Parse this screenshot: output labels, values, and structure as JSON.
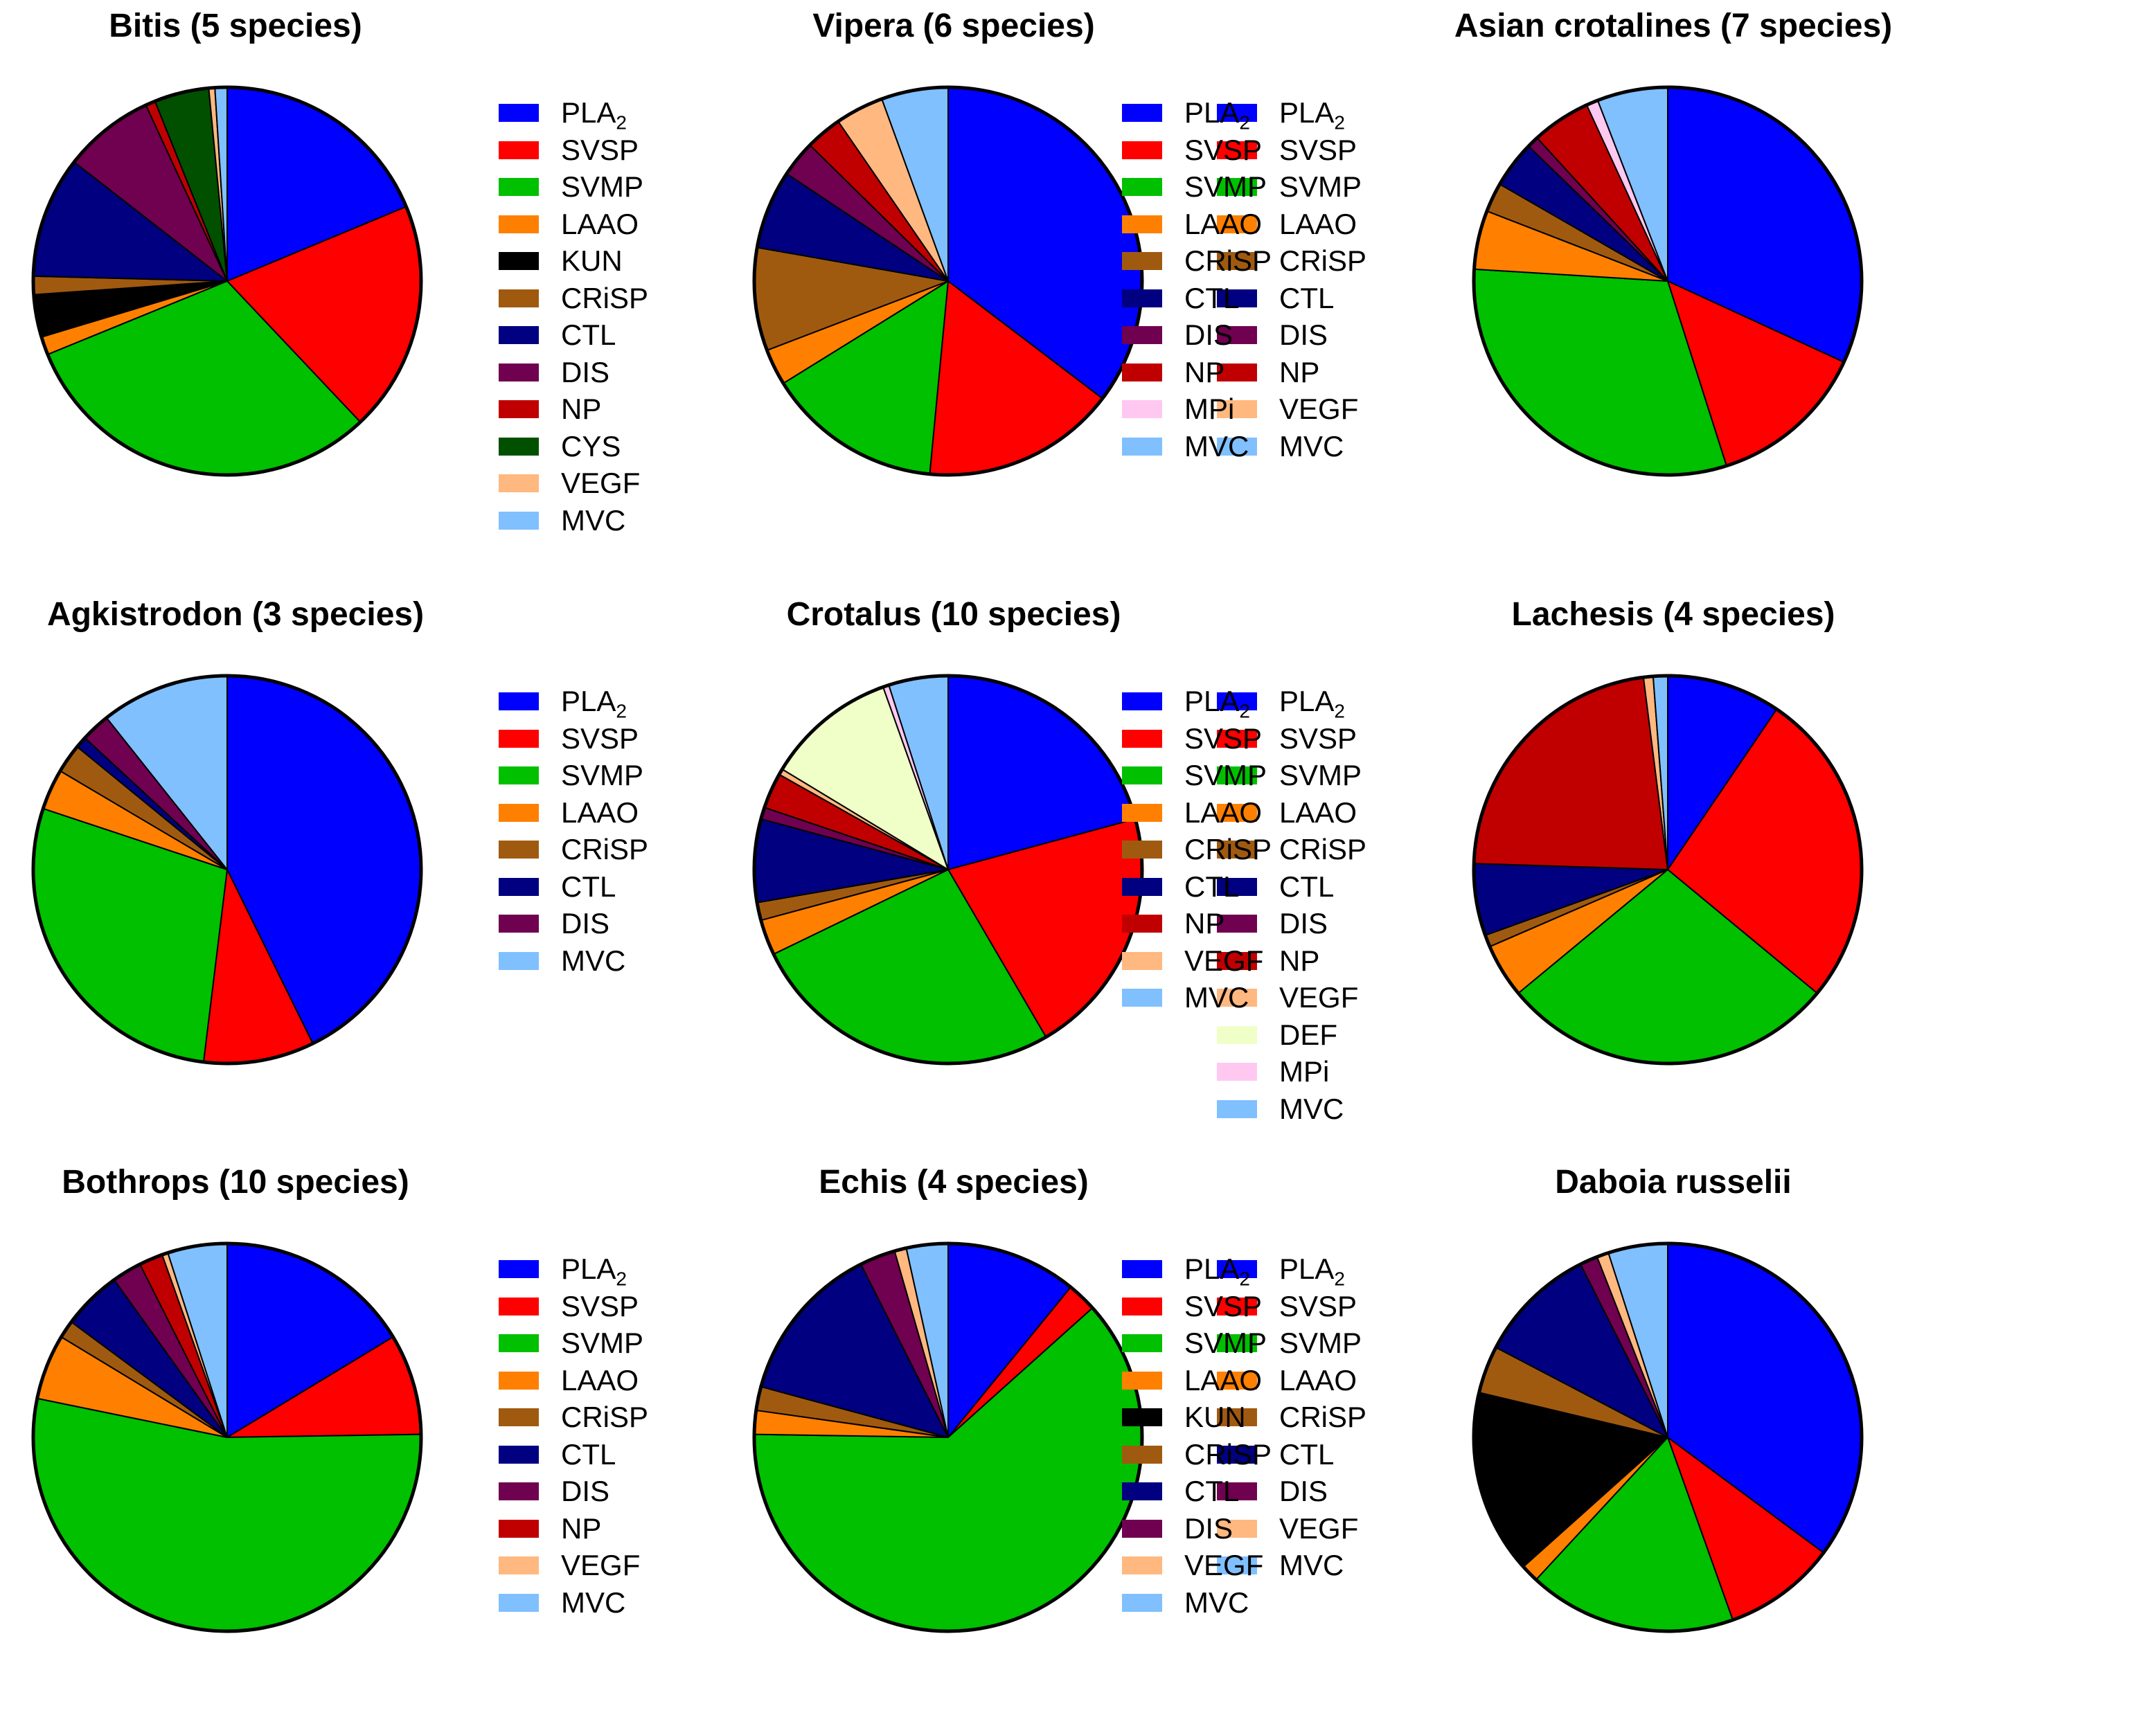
{
  "colors": {
    "PLA2": "#0000ff",
    "SVSP": "#ff0000",
    "SVMP": "#00c000",
    "LAAO": "#ff8000",
    "KUN": "#000000",
    "CRiSP": "#a05a10",
    "CTL": "#000080",
    "DIS": "#700050",
    "NP": "#c00000",
    "CYS": "#005000",
    "VEGF": "#ffb880",
    "MVC": "#80c0ff",
    "MPi": "#ffc8f0",
    "DEF": "#f0ffc8"
  },
  "chart_data": [
    {
      "type": "pie",
      "title": "Bitis (5 species)",
      "legend": [
        "PLA2",
        "SVSP",
        "SVMP",
        "LAAO",
        "KUN",
        "CRiSP",
        "CTL",
        "DIS",
        "NP",
        "CYS",
        "VEGF",
        "MVC"
      ],
      "slices": [
        {
          "label": "PLA2",
          "value": 18.5
        },
        {
          "label": "SVSP",
          "value": 19.0
        },
        {
          "label": "SVMP",
          "value": 30.5
        },
        {
          "label": "LAAO",
          "value": 1.5
        },
        {
          "label": "KUN",
          "value": 3.5
        },
        {
          "label": "CRiSP",
          "value": 1.5
        },
        {
          "label": "CTL",
          "value": 10.0
        },
        {
          "label": "DIS",
          "value": 7.5
        },
        {
          "label": "NP",
          "value": 0.8
        },
        {
          "label": "CYS",
          "value": 4.5
        },
        {
          "label": "VEGF",
          "value": 0.5
        },
        {
          "label": "MVC",
          "value": 1.0
        }
      ]
    },
    {
      "type": "pie",
      "title": "Vipera (6 species)",
      "legend": [
        "PLA2",
        "SVSP",
        "SVMP",
        "LAAO",
        "CRiSP",
        "CTL",
        "DIS",
        "NP",
        "VEGF",
        "MVC"
      ],
      "slices": [
        {
          "label": "PLA2",
          "value": 35.0
        },
        {
          "label": "SVSP",
          "value": 16.0
        },
        {
          "label": "SVMP",
          "value": 14.5
        },
        {
          "label": "LAAO",
          "value": 3.0
        },
        {
          "label": "CRiSP",
          "value": 8.5
        },
        {
          "label": "CTL",
          "value": 6.5
        },
        {
          "label": "DIS",
          "value": 3.0
        },
        {
          "label": "NP",
          "value": 3.0
        },
        {
          "label": "VEGF",
          "value": 4.0
        },
        {
          "label": "MVC",
          "value": 5.5
        }
      ]
    },
    {
      "type": "pie",
      "title": "Asian crotalines (7 species)",
      "legend": [
        "PLA2",
        "SVSP",
        "SVMP",
        "LAAO",
        "CRiSP",
        "CTL",
        "DIS",
        "NP",
        "MPi",
        "MVC"
      ],
      "slices": [
        {
          "label": "PLA2",
          "value": 32.5
        },
        {
          "label": "SVSP",
          "value": 13.5
        },
        {
          "label": "SVMP",
          "value": 31.5
        },
        {
          "label": "LAAO",
          "value": 5.0
        },
        {
          "label": "CRiSP",
          "value": 2.5
        },
        {
          "label": "CTL",
          "value": 4.0
        },
        {
          "label": "DIS",
          "value": 1.0
        },
        {
          "label": "NP",
          "value": 5.0
        },
        {
          "label": "MPi",
          "value": 1.0
        },
        {
          "label": "MVC",
          "value": 6.0
        }
      ]
    },
    {
      "type": "pie",
      "title": "Agkistrodon (3 species)",
      "legend": [
        "PLA2",
        "SVSP",
        "SVMP",
        "LAAO",
        "CRiSP",
        "CTL",
        "DIS",
        "MVC"
      ],
      "slices": [
        {
          "label": "PLA2",
          "value": 44.0
        },
        {
          "label": "SVSP",
          "value": 9.5
        },
        {
          "label": "SVMP",
          "value": 29.0
        },
        {
          "label": "LAAO",
          "value": 3.5
        },
        {
          "label": "CRiSP",
          "value": 2.5
        },
        {
          "label": "CTL",
          "value": 1.0
        },
        {
          "label": "DIS",
          "value": 2.5
        },
        {
          "label": "MVC",
          "value": 11.0
        }
      ]
    },
    {
      "type": "pie",
      "title": "Crotalus (10 species)",
      "legend": [
        "PLA2",
        "SVSP",
        "SVMP",
        "LAAO",
        "CRiSP",
        "CTL",
        "DIS",
        "NP",
        "VEGF",
        "DEF",
        "MPi",
        "MVC"
      ],
      "slices": [
        {
          "label": "PLA2",
          "value": 21.0
        },
        {
          "label": "SVSP",
          "value": 21.0
        },
        {
          "label": "SVMP",
          "value": 26.5
        },
        {
          "label": "LAAO",
          "value": 3.0
        },
        {
          "label": "CRiSP",
          "value": 1.5
        },
        {
          "label": "CTL",
          "value": 7.0
        },
        {
          "label": "DIS",
          "value": 1.0
        },
        {
          "label": "NP",
          "value": 3.0
        },
        {
          "label": "VEGF",
          "value": 0.5
        },
        {
          "label": "DEF",
          "value": 11.0
        },
        {
          "label": "MPi",
          "value": 0.5
        },
        {
          "label": "MVC",
          "value": 5.0
        }
      ]
    },
    {
      "type": "pie",
      "title": "Lachesis (4 species)",
      "legend": [
        "PLA2",
        "SVSP",
        "SVMP",
        "LAAO",
        "CRiSP",
        "CTL",
        "NP",
        "VEGF",
        "MVC"
      ],
      "slices": [
        {
          "label": "PLA2",
          "value": 9.5
        },
        {
          "label": "SVSP",
          "value": 26.5
        },
        {
          "label": "SVMP",
          "value": 28.0
        },
        {
          "label": "LAAO",
          "value": 4.5
        },
        {
          "label": "CRiSP",
          "value": 1.0
        },
        {
          "label": "CTL",
          "value": 6.0
        },
        {
          "label": "NP",
          "value": 22.5
        },
        {
          "label": "VEGF",
          "value": 0.8
        },
        {
          "label": "MVC",
          "value": 1.2
        }
      ]
    },
    {
      "type": "pie",
      "title": "Bothrops (10 species)",
      "legend": [
        "PLA2",
        "SVSP",
        "SVMP",
        "LAAO",
        "CRiSP",
        "CTL",
        "DIS",
        "NP",
        "VEGF",
        "MVC"
      ],
      "slices": [
        {
          "label": "PLA2",
          "value": 16.5
        },
        {
          "label": "SVSP",
          "value": 8.5
        },
        {
          "label": "SVMP",
          "value": 54.0
        },
        {
          "label": "LAAO",
          "value": 5.5
        },
        {
          "label": "CRiSP",
          "value": 1.5
        },
        {
          "label": "CTL",
          "value": 5.0
        },
        {
          "label": "DIS",
          "value": 2.5
        },
        {
          "label": "NP",
          "value": 2.0
        },
        {
          "label": "VEGF",
          "value": 0.5
        },
        {
          "label": "MVC",
          "value": 5.0
        }
      ]
    },
    {
      "type": "pie",
      "title": "Echis (4 species)",
      "legend": [
        "PLA2",
        "SVSP",
        "SVMP",
        "LAAO",
        "CRiSP",
        "CTL",
        "DIS",
        "VEGF",
        "MVC"
      ],
      "slices": [
        {
          "label": "PLA2",
          "value": 11.0
        },
        {
          "label": "SVSP",
          "value": 2.5
        },
        {
          "label": "SVMP",
          "value": 62.5
        },
        {
          "label": "LAAO",
          "value": 2.0
        },
        {
          "label": "CRiSP",
          "value": 2.0
        },
        {
          "label": "CTL",
          "value": 13.5
        },
        {
          "label": "DIS",
          "value": 3.0
        },
        {
          "label": "VEGF",
          "value": 1.0
        },
        {
          "label": "MVC",
          "value": 3.5
        }
      ]
    },
    {
      "type": "pie",
      "title": "Daboia russelii",
      "legend": [
        "PLA2",
        "SVSP",
        "SVMP",
        "LAAO",
        "KUN",
        "CRiSP",
        "CTL",
        "DIS",
        "VEGF",
        "MVC"
      ],
      "slices": [
        {
          "label": "PLA2",
          "value": 35.5
        },
        {
          "label": "SVSP",
          "value": 9.5
        },
        {
          "label": "SVMP",
          "value": 17.5
        },
        {
          "label": "LAAO",
          "value": 1.5
        },
        {
          "label": "KUN",
          "value": 15.5
        },
        {
          "label": "CRiSP",
          "value": 4.0
        },
        {
          "label": "CTL",
          "value": 10.0
        },
        {
          "label": "DIS",
          "value": 1.5
        },
        {
          "label": "VEGF",
          "value": 1.0
        },
        {
          "label": "MVC",
          "value": 5.0
        }
      ]
    }
  ]
}
